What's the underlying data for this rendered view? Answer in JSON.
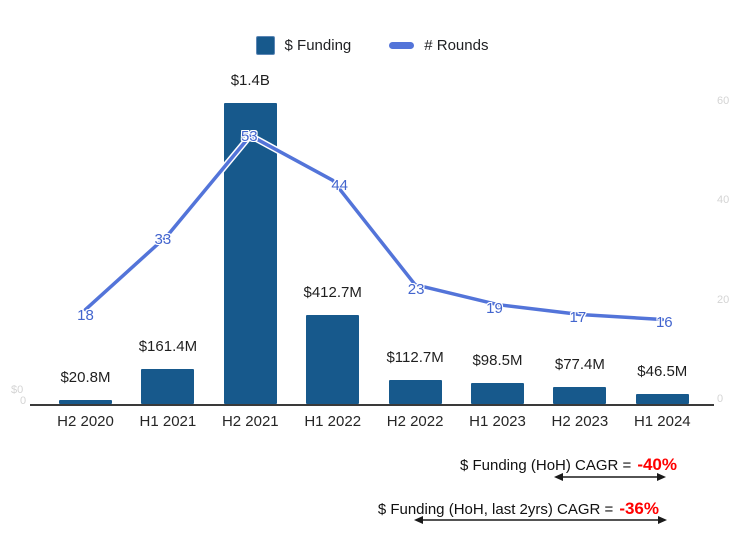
{
  "legend": {
    "funding": "$ Funding",
    "rounds": "# Rounds"
  },
  "colors": {
    "bar": "#17598C",
    "line": "#5374D9",
    "line_label": "#4365CE",
    "negative": "#FF0000",
    "axis": "#3A3A3A",
    "faint_tick": "#D4D4D4",
    "text": "#1F1F1F"
  },
  "chart_data": {
    "type": "combo",
    "categories": [
      "H2 2020",
      "H1 2021",
      "H2 2021",
      "H1 2022",
      "H2 2022",
      "H1 2023",
      "H2 2023",
      "H1 2024"
    ],
    "series": [
      {
        "name": "$ Funding",
        "chart_type": "bar",
        "unit": "USD millions",
        "values": [
          20.8,
          161.4,
          1400,
          412.7,
          112.7,
          98.5,
          77.4,
          46.5
        ],
        "value_labels": [
          "$20.8M",
          "$161.4M",
          "$1.4B",
          "$412.7M",
          "$112.7M",
          "$98.5M",
          "$77.4M",
          "$46.5M"
        ]
      },
      {
        "name": "# Rounds",
        "chart_type": "line",
        "values": [
          18,
          33,
          53,
          44,
          23,
          19,
          17,
          16
        ]
      }
    ],
    "right_axis": {
      "ticks": [
        0,
        20,
        40,
        60
      ],
      "range": [
        0,
        60
      ]
    },
    "left_axis": {
      "visible_labels": [
        "$0",
        "0"
      ]
    },
    "legend_position": "top",
    "grid": "off"
  },
  "annotations": {
    "cagr_hoh": {
      "label": "$ Funding (HoH) CAGR =",
      "value": "-40%"
    },
    "cagr_hoh_2yrs": {
      "label": "$ Funding (HoH, last 2yrs) CAGR =",
      "value": "-36%"
    }
  }
}
